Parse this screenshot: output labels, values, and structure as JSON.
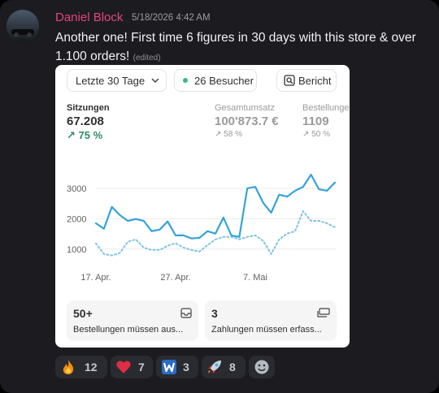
{
  "message": {
    "author": "Daniel Block",
    "timestamp": "5/18/2026 4:42 AM",
    "text": "Another one! First time 6 figures in 30 days with this store & over 1.100 orders!",
    "edited": "(edited)"
  },
  "embed": {
    "buttons": {
      "range": "Letzte 30 Tage",
      "visitors": "26 Besucher",
      "report": "Bericht"
    },
    "metrics": [
      {
        "label": "Sitzungen",
        "value": "67.208",
        "change": "75 %"
      },
      {
        "label": "Gesamtumsatz",
        "value": "100'873.7 €",
        "change": "58 %"
      },
      {
        "label": "Bestellungen",
        "value": "1109",
        "change": "50 %"
      }
    ],
    "chart": {
      "type": "line",
      "categories": [
        "17. Apr.",
        null,
        null,
        null,
        null,
        null,
        null,
        null,
        null,
        null,
        "27. Apr.",
        null,
        null,
        null,
        null,
        null,
        null,
        null,
        null,
        null,
        "7. Mai",
        null,
        null,
        null,
        null,
        null,
        null,
        null,
        null,
        null,
        null
      ],
      "series": [
        {
          "color": "#36a3d6",
          "style": "solid",
          "values": [
            1850,
            1670,
            2390,
            2120,
            1930,
            1990,
            1930,
            1590,
            1640,
            1910,
            1450,
            1450,
            1350,
            1370,
            1590,
            1510,
            2040,
            1450,
            1400,
            3000,
            3050,
            2520,
            2200,
            2790,
            2730,
            2920,
            3050,
            3450,
            2970,
            2920,
            3190
          ]
        },
        {
          "color": "#7fc4e2",
          "style": "dotted",
          "values": [
            1190,
            840,
            790,
            870,
            1240,
            1320,
            1050,
            970,
            970,
            1110,
            1190,
            1050,
            970,
            920,
            1130,
            1320,
            1400,
            1400,
            1320,
            1400,
            1450,
            1270,
            840,
            1320,
            1510,
            1590,
            2250,
            1930,
            1930,
            1850,
            1720
          ]
        }
      ],
      "ylim": [
        700,
        3600
      ],
      "yticks": [
        1000,
        2000,
        3000
      ],
      "grid": true
    },
    "cards": [
      {
        "value": "50+",
        "text": "Bestellungen müssen aus..."
      },
      {
        "value": "3",
        "text": "Zahlungen müssen erfass..."
      }
    ]
  },
  "reactions": [
    {
      "count": 12
    },
    {
      "count": 7
    },
    {
      "count": 3
    },
    {
      "count": 8
    }
  ]
}
